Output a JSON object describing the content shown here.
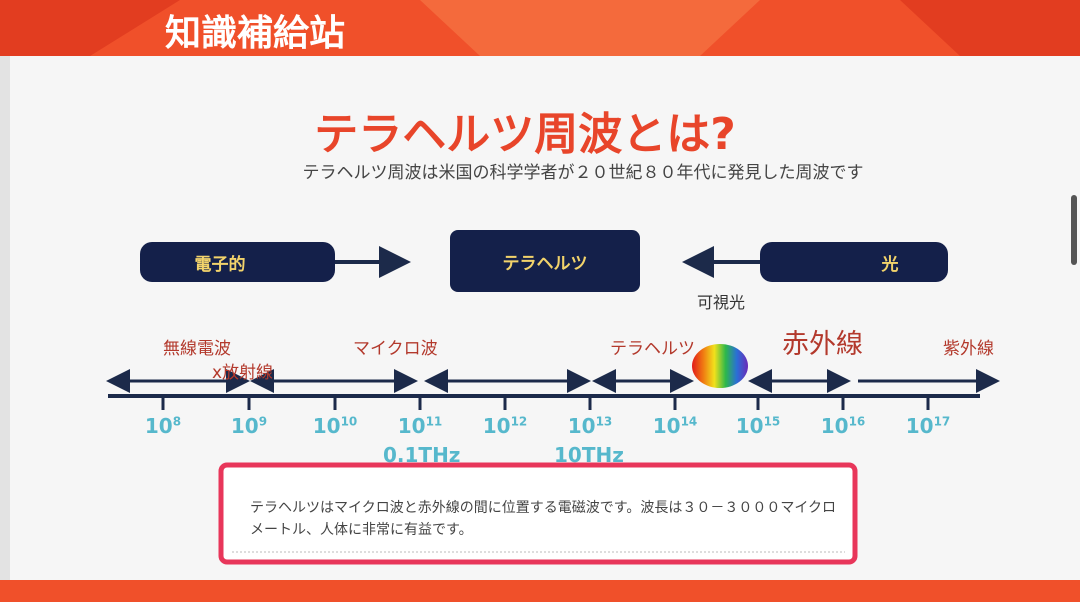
{
  "header": {
    "title": "知識補給站"
  },
  "slide": {
    "title": "テラヘルツ周波とは?",
    "subtitle": "テラヘルツ周波は米国の科学学者が２０世紀８０年代に発見した周波です",
    "boxes": [
      "電子的",
      "テラヘルツ",
      "光"
    ],
    "visible_label": "可視光",
    "bands": [
      "無線電波",
      "x放射線",
      "マイクロ波",
      "テラヘルツ",
      "赤外線",
      "紫外線"
    ],
    "ticks": [
      {
        "base": "10",
        "exp": "8"
      },
      {
        "base": "10",
        "exp": "9"
      },
      {
        "base": "10",
        "exp": "10"
      },
      {
        "base": "10",
        "exp": "11"
      },
      {
        "base": "10",
        "exp": "12"
      },
      {
        "base": "10",
        "exp": "13"
      },
      {
        "base": "10",
        "exp": "14"
      },
      {
        "base": "10",
        "exp": "15"
      },
      {
        "base": "10",
        "exp": "16"
      },
      {
        "base": "10",
        "exp": "17"
      }
    ],
    "thz_labels": [
      "0.1THz",
      "10THz"
    ],
    "note": "テラヘルツはマイクロ波と赤外線の間に位置する電磁波です。波長は３０－３０００マイクロメートル、人体に非常に有益です。"
  }
}
